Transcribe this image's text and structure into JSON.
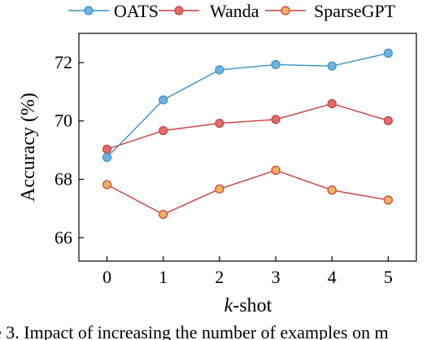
{
  "chart_data": {
    "type": "line",
    "x": [
      0,
      1,
      2,
      3,
      4,
      5
    ],
    "xlabel_italic": "k",
    "xlabel_rest": "-shot",
    "ylabel": "Accuracy (%)",
    "ylim": [
      65.2,
      73.0
    ],
    "xlim": [
      -0.5,
      5.5
    ],
    "yticks": [
      66,
      68,
      70,
      72
    ],
    "grid": false,
    "legend": "top",
    "series": [
      {
        "name": "OATS",
        "color": "#3a8fc0",
        "fill": "#6cb4dd",
        "values": [
          68.75,
          70.72,
          71.75,
          71.93,
          71.88,
          72.32
        ]
      },
      {
        "name": "Wanda",
        "color": "#cc3b3b",
        "fill": "#e06c6c",
        "values": [
          69.03,
          69.67,
          69.92,
          70.05,
          70.59,
          70.01
        ]
      },
      {
        "name": "SparseGPT",
        "color": "#cc3b3b",
        "fill": "#f2b25c",
        "values": [
          67.82,
          66.8,
          67.67,
          68.31,
          67.63,
          67.29
        ]
      }
    ]
  },
  "caption": "e 3. Impact of increasing the number of examples on m"
}
